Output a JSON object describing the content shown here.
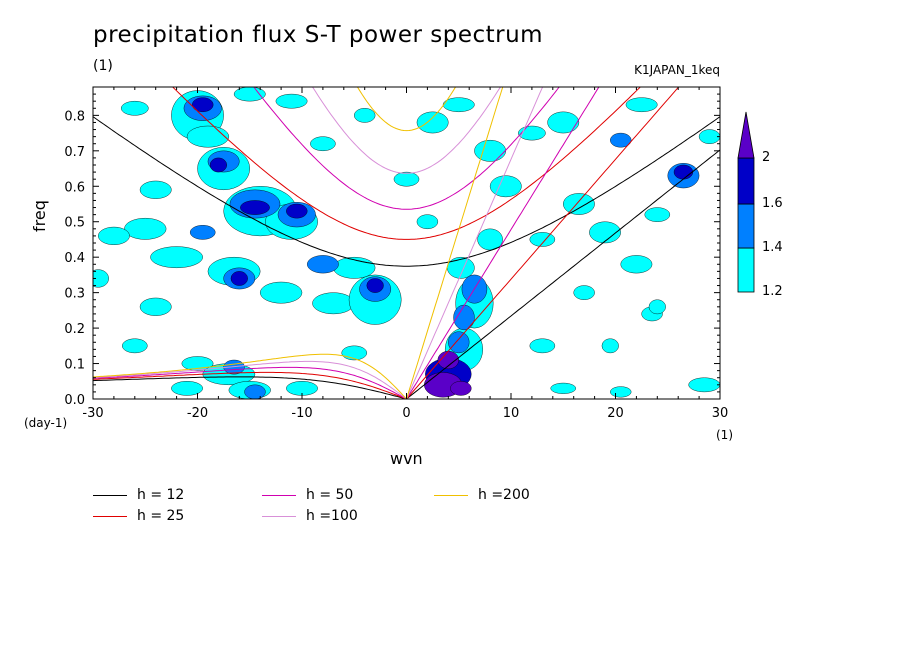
{
  "chart_data": {
    "type": "contour",
    "title": "precipitation flux S-T power spectrum",
    "subtitle": "(1)",
    "run_label": "K1JAPAN_1keq",
    "xlabel": "wvn",
    "ylabel": "freq",
    "x_unit": "(1)",
    "y_unit": "(day-1)",
    "xlim": [
      -30,
      30
    ],
    "ylim": [
      0,
      0.88
    ],
    "xticks": [
      -30,
      -20,
      -10,
      0,
      10,
      20,
      30
    ],
    "xtick_labels": [
      "-30",
      "-20",
      "-10",
      "0",
      "10",
      "20",
      "30"
    ],
    "yticks": [
      0,
      0.1,
      0.2,
      0.3,
      0.4,
      0.5,
      0.6,
      0.7,
      0.8
    ],
    "ytick_labels": [
      "0.0",
      "0.1",
      "0.2",
      "0.3",
      "0.4",
      "0.5",
      "0.6",
      "0.7",
      "0.8"
    ],
    "contour_levels": [
      1.2,
      1.4,
      1.6,
      2
    ],
    "colorbar_labels": [
      "1.2",
      "1.4",
      "1.6",
      "2"
    ],
    "colors": {
      "level_1": "#00ffff",
      "level_2": "#0080ff",
      "level_3": "#0000c8",
      "level_4": "#5a00c8",
      "h12": "#000000",
      "h25": "#e00000",
      "h50": "#d000b0",
      "h100": "#d890d8",
      "h200": "#f0c000"
    },
    "dispersion_curves": [
      {
        "h": 12,
        "label": "h = 12",
        "color": "#000000"
      },
      {
        "h": 25,
        "label": "h = 25",
        "color": "#e00000"
      },
      {
        "h": 50,
        "label": "h = 50",
        "color": "#d000b0"
      },
      {
        "h": 100,
        "label": "h =100",
        "color": "#d890d8"
      },
      {
        "h": 200,
        "label": "h =200",
        "color": "#f0c000"
      }
    ],
    "blobs": [
      {
        "x": 3.5,
        "y": 0.04,
        "rx": 1.8,
        "ry": 0.035,
        "level": 4
      },
      {
        "x": 5.2,
        "y": 0.03,
        "rx": 1.0,
        "ry": 0.02,
        "level": 4
      },
      {
        "x": 4.0,
        "y": 0.11,
        "rx": 1.0,
        "ry": 0.025,
        "level": 4
      },
      {
        "x": 4.0,
        "y": 0.07,
        "rx": 2.2,
        "ry": 0.045,
        "level": 3
      },
      {
        "x": 5.0,
        "y": 0.16,
        "rx": 1.0,
        "ry": 0.03,
        "level": 2
      },
      {
        "x": 5.5,
        "y": 0.23,
        "rx": 1.0,
        "ry": 0.035,
        "level": 2
      },
      {
        "x": 6.5,
        "y": 0.31,
        "rx": 1.2,
        "ry": 0.04,
        "level": 2
      },
      {
        "x": 5.5,
        "y": 0.14,
        "rx": 1.8,
        "ry": 0.06,
        "level": 1
      },
      {
        "x": 6.5,
        "y": 0.27,
        "rx": 1.8,
        "ry": 0.07,
        "level": 1
      },
      {
        "x": 5.2,
        "y": 0.37,
        "rx": 1.3,
        "ry": 0.03,
        "level": 1
      },
      {
        "x": -14.5,
        "y": 0.54,
        "rx": 1.4,
        "ry": 0.02,
        "level": 3
      },
      {
        "x": -10.5,
        "y": 0.53,
        "rx": 1.0,
        "ry": 0.02,
        "level": 3
      },
      {
        "x": -19.5,
        "y": 0.83,
        "rx": 1.0,
        "ry": 0.02,
        "level": 3
      },
      {
        "x": -18.0,
        "y": 0.66,
        "rx": 0.8,
        "ry": 0.02,
        "level": 3
      },
      {
        "x": -16.0,
        "y": 0.34,
        "rx": 0.8,
        "ry": 0.02,
        "level": 3
      },
      {
        "x": -3.0,
        "y": 0.32,
        "rx": 0.8,
        "ry": 0.02,
        "level": 3
      },
      {
        "x": 26.5,
        "y": 0.64,
        "rx": 0.9,
        "ry": 0.02,
        "level": 3
      },
      {
        "x": -14.5,
        "y": 0.55,
        "rx": 2.4,
        "ry": 0.04,
        "level": 2
      },
      {
        "x": -10.5,
        "y": 0.52,
        "rx": 1.8,
        "ry": 0.035,
        "level": 2
      },
      {
        "x": -19.5,
        "y": 0.82,
        "rx": 1.8,
        "ry": 0.035,
        "level": 2
      },
      {
        "x": -17.5,
        "y": 0.67,
        "rx": 1.5,
        "ry": 0.03,
        "level": 2
      },
      {
        "x": -16.0,
        "y": 0.34,
        "rx": 1.5,
        "ry": 0.03,
        "level": 2
      },
      {
        "x": -19.5,
        "y": 0.47,
        "rx": 1.2,
        "ry": 0.02,
        "level": 2
      },
      {
        "x": -8.0,
        "y": 0.38,
        "rx": 1.5,
        "ry": 0.025,
        "level": 2
      },
      {
        "x": -3.0,
        "y": 0.31,
        "rx": 1.5,
        "ry": 0.035,
        "level": 2
      },
      {
        "x": -14.5,
        "y": 0.02,
        "rx": 1.0,
        "ry": 0.02,
        "level": 2
      },
      {
        "x": -16.5,
        "y": 0.09,
        "rx": 1.0,
        "ry": 0.02,
        "level": 2
      },
      {
        "x": 20.5,
        "y": 0.73,
        "rx": 1.0,
        "ry": 0.02,
        "level": 2
      },
      {
        "x": 26.5,
        "y": 0.63,
        "rx": 1.5,
        "ry": 0.035,
        "level": 2
      },
      {
        "x": -14.0,
        "y": 0.53,
        "rx": 3.5,
        "ry": 0.07,
        "level": 1
      },
      {
        "x": -20.0,
        "y": 0.8,
        "rx": 2.5,
        "ry": 0.07,
        "level": 1
      },
      {
        "x": -17.5,
        "y": 0.65,
        "rx": 2.5,
        "ry": 0.06,
        "level": 1
      },
      {
        "x": -19.0,
        "y": 0.74,
        "rx": 2.0,
        "ry": 0.03,
        "level": 1
      },
      {
        "x": -11.0,
        "y": 0.5,
        "rx": 2.5,
        "ry": 0.05,
        "level": 1
      },
      {
        "x": -22.0,
        "y": 0.4,
        "rx": 2.5,
        "ry": 0.03,
        "level": 1
      },
      {
        "x": -16.5,
        "y": 0.36,
        "rx": 2.5,
        "ry": 0.04,
        "level": 1
      },
      {
        "x": -12.0,
        "y": 0.3,
        "rx": 2.0,
        "ry": 0.03,
        "level": 1
      },
      {
        "x": -7.0,
        "y": 0.27,
        "rx": 2.0,
        "ry": 0.03,
        "level": 1
      },
      {
        "x": -3.0,
        "y": 0.28,
        "rx": 2.5,
        "ry": 0.07,
        "level": 1
      },
      {
        "x": -5.0,
        "y": 0.37,
        "rx": 2.0,
        "ry": 0.03,
        "level": 1
      },
      {
        "x": -25.0,
        "y": 0.48,
        "rx": 2.0,
        "ry": 0.03,
        "level": 1
      },
      {
        "x": -28.0,
        "y": 0.46,
        "rx": 1.5,
        "ry": 0.025,
        "level": 1
      },
      {
        "x": -24.0,
        "y": 0.59,
        "rx": 1.5,
        "ry": 0.025,
        "level": 1
      },
      {
        "x": -26.0,
        "y": 0.82,
        "rx": 1.3,
        "ry": 0.02,
        "level": 1
      },
      {
        "x": -15.0,
        "y": 0.86,
        "rx": 1.5,
        "ry": 0.02,
        "level": 1
      },
      {
        "x": -11.0,
        "y": 0.84,
        "rx": 1.5,
        "ry": 0.02,
        "level": 1
      },
      {
        "x": -8.0,
        "y": 0.72,
        "rx": 1.2,
        "ry": 0.02,
        "level": 1
      },
      {
        "x": -4.0,
        "y": 0.8,
        "rx": 1.0,
        "ry": 0.02,
        "level": 1
      },
      {
        "x": 2.5,
        "y": 0.78,
        "rx": 1.5,
        "ry": 0.03,
        "level": 1
      },
      {
        "x": 8.0,
        "y": 0.7,
        "rx": 1.5,
        "ry": 0.03,
        "level": 1
      },
      {
        "x": 12.0,
        "y": 0.75,
        "rx": 1.3,
        "ry": 0.02,
        "level": 1
      },
      {
        "x": 15.0,
        "y": 0.78,
        "rx": 1.5,
        "ry": 0.03,
        "level": 1
      },
      {
        "x": 16.5,
        "y": 0.55,
        "rx": 1.5,
        "ry": 0.03,
        "level": 1
      },
      {
        "x": 13.0,
        "y": 0.45,
        "rx": 1.2,
        "ry": 0.02,
        "level": 1
      },
      {
        "x": 19.0,
        "y": 0.47,
        "rx": 1.5,
        "ry": 0.03,
        "level": 1
      },
      {
        "x": 22.0,
        "y": 0.38,
        "rx": 1.5,
        "ry": 0.025,
        "level": 1
      },
      {
        "x": 24.0,
        "y": 0.52,
        "rx": 1.2,
        "ry": 0.02,
        "level": 1
      },
      {
        "x": 29.0,
        "y": 0.74,
        "rx": 1.0,
        "ry": 0.02,
        "level": 1
      },
      {
        "x": 9.5,
        "y": 0.6,
        "rx": 1.5,
        "ry": 0.03,
        "level": 1
      },
      {
        "x": 2.0,
        "y": 0.5,
        "rx": 1.0,
        "ry": 0.02,
        "level": 1
      },
      {
        "x": -24.0,
        "y": 0.26,
        "rx": 1.5,
        "ry": 0.025,
        "level": 1
      },
      {
        "x": -26.0,
        "y": 0.15,
        "rx": 1.2,
        "ry": 0.02,
        "level": 1
      },
      {
        "x": -20.0,
        "y": 0.1,
        "rx": 1.5,
        "ry": 0.02,
        "level": 1
      },
      {
        "x": -17.0,
        "y": 0.07,
        "rx": 2.5,
        "ry": 0.03,
        "level": 1
      },
      {
        "x": -15.0,
        "y": 0.025,
        "rx": 2.0,
        "ry": 0.025,
        "level": 1
      },
      {
        "x": -21.0,
        "y": 0.03,
        "rx": 1.5,
        "ry": 0.02,
        "level": 1
      },
      {
        "x": -10.0,
        "y": 0.03,
        "rx": 1.5,
        "ry": 0.02,
        "level": 1
      },
      {
        "x": -5.0,
        "y": 0.13,
        "rx": 1.2,
        "ry": 0.02,
        "level": 1
      },
      {
        "x": 13.0,
        "y": 0.15,
        "rx": 1.2,
        "ry": 0.02,
        "level": 1
      },
      {
        "x": 17.0,
        "y": 0.3,
        "rx": 1.0,
        "ry": 0.02,
        "level": 1
      },
      {
        "x": 23.5,
        "y": 0.24,
        "rx": 1.0,
        "ry": 0.02,
        "level": 1
      },
      {
        "x": 24.0,
        "y": 0.26,
        "rx": 0.8,
        "ry": 0.02,
        "level": 1
      },
      {
        "x": 28.5,
        "y": 0.04,
        "rx": 1.5,
        "ry": 0.02,
        "level": 1
      },
      {
        "x": 20.5,
        "y": 0.02,
        "rx": 1.0,
        "ry": 0.015,
        "level": 1
      },
      {
        "x": 15.0,
        "y": 0.03,
        "rx": 1.2,
        "ry": 0.015,
        "level": 1
      },
      {
        "x": -29.5,
        "y": 0.34,
        "rx": 1.0,
        "ry": 0.025,
        "level": 1
      },
      {
        "x": 19.5,
        "y": 0.15,
        "rx": 0.8,
        "ry": 0.02,
        "level": 1
      },
      {
        "x": 8.0,
        "y": 0.45,
        "rx": 1.2,
        "ry": 0.03,
        "level": 1
      },
      {
        "x": 0.0,
        "y": 0.62,
        "rx": 1.2,
        "ry": 0.02,
        "level": 1
      },
      {
        "x": 5.0,
        "y": 0.83,
        "rx": 1.5,
        "ry": 0.02,
        "level": 1
      },
      {
        "x": 22.5,
        "y": 0.83,
        "rx": 1.5,
        "ry": 0.02,
        "level": 1
      }
    ]
  }
}
